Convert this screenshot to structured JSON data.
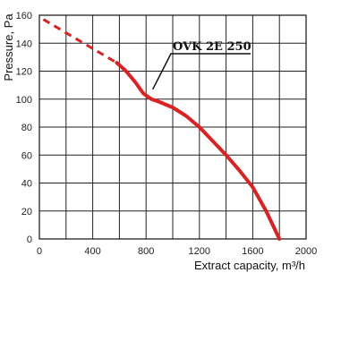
{
  "chart_data": {
    "type": "line",
    "xlabel": "Extract capacity, m³/h",
    "ylabel": "Pressure, Pa",
    "xlim": [
      0,
      2000
    ],
    "ylim": [
      0,
      160
    ],
    "x_ticks": [
      "0",
      "400",
      "800",
      "1200",
      "1600",
      "2000"
    ],
    "y_ticks": [
      "0",
      "20",
      "40",
      "60",
      "80",
      "100",
      "120",
      "140",
      "160"
    ],
    "grid": true,
    "series": [
      {
        "name": "OVK 2E 250",
        "color": "#e02020",
        "dashed_segment": {
          "x": [
            30,
            580
          ],
          "y": [
            157,
            126
          ]
        },
        "solid_segment": {
          "x": [
            580,
            650,
            720,
            780,
            840,
            900,
            1000,
            1100,
            1200,
            1300,
            1400,
            1500,
            1600,
            1700,
            1760,
            1800
          ],
          "y": [
            126,
            120,
            112,
            104,
            100,
            98,
            94,
            88,
            80,
            70,
            60,
            49,
            37,
            20,
            8,
            0
          ]
        }
      }
    ],
    "annotations": [
      {
        "text": "OVK 2E 250",
        "points_to": {
          "x": 850,
          "y": 107
        }
      }
    ]
  }
}
